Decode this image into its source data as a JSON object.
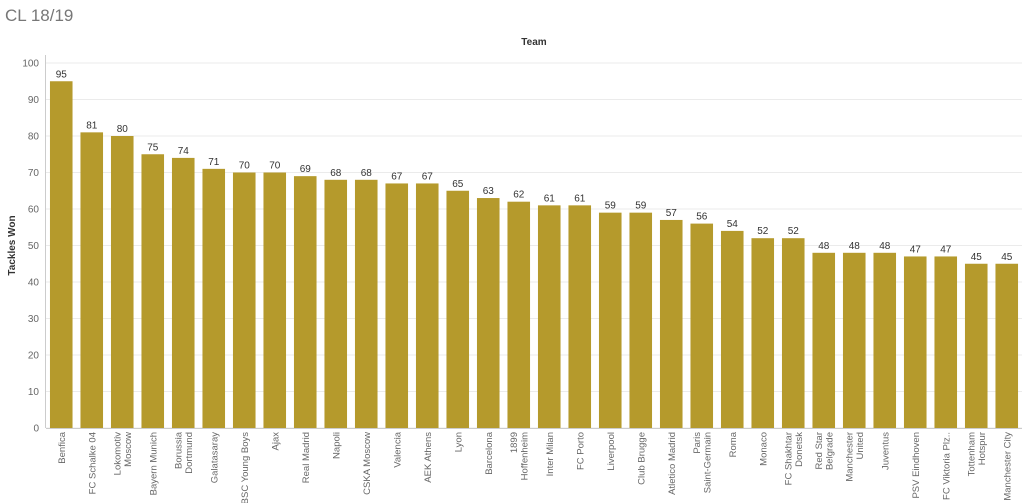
{
  "page": {
    "title": "CL 18/19"
  },
  "colors": {
    "bar": "#b59a2c",
    "grid": "#ebebeb",
    "axis": "#cccccc"
  },
  "chart_data": {
    "type": "bar",
    "title": "",
    "xlabel": "Team",
    "ylabel": "Tackles Won",
    "xlabel_position": "top",
    "ylim": [
      0,
      100
    ],
    "yticks": [
      0,
      10,
      20,
      30,
      40,
      50,
      60,
      70,
      80,
      90,
      100
    ],
    "grid": true,
    "categories": [
      "Benfica",
      "FC Schalke 04",
      "Lokomotiv Moscow",
      "Bayern Munich",
      "Borussia Dortmund",
      "Galatasaray",
      "BSC Young Boys",
      "Ajax",
      "Real Madrid",
      "Napoli",
      "CSKA Moscow",
      "Valencia",
      "AEK Athens",
      "Lyon",
      "Barcelona",
      "1899 Hoffenheim",
      "Inter Milan",
      "FC Porto",
      "Liverpool",
      "Club Brugge",
      "Atletico Madrid",
      "Paris Saint-Germain",
      "Roma",
      "Monaco",
      "FC Shakhtar Donetsk",
      "Red Star Belgrade",
      "Manchester United",
      "Juventus",
      "PSV Eindhoven",
      "FC Viktoria Plz..",
      "Tottenham Hotspur",
      "Manchester City"
    ],
    "category_label_lines": [
      [
        "Benfica"
      ],
      [
        "FC Schalke 04"
      ],
      [
        "Lokomotiv",
        "Moscow"
      ],
      [
        "Bayern Munich"
      ],
      [
        "Borussia",
        "Dortmund"
      ],
      [
        "Galatasaray"
      ],
      [
        "BSC Young Boys"
      ],
      [
        "Ajax"
      ],
      [
        "Real Madrid"
      ],
      [
        "Napoli"
      ],
      [
        "CSKA Moscow"
      ],
      [
        "Valencia"
      ],
      [
        "AEK Athens"
      ],
      [
        "Lyon"
      ],
      [
        "Barcelona"
      ],
      [
        "1899",
        "Hoffenheim"
      ],
      [
        "Inter Milan"
      ],
      [
        "FC Porto"
      ],
      [
        "Liverpool"
      ],
      [
        "Club Brugge"
      ],
      [
        "Atletico Madrid"
      ],
      [
        "Paris",
        "Saint-Germain"
      ],
      [
        "Roma"
      ],
      [
        "Monaco"
      ],
      [
        "FC Shakhtar",
        "Donetsk"
      ],
      [
        "Red Star",
        "Belgrade"
      ],
      [
        "Manchester",
        "United"
      ],
      [
        "Juventus"
      ],
      [
        "PSV Eindhoven"
      ],
      [
        "FC Viktoria Plz.."
      ],
      [
        "Tottenham",
        "Hotspur"
      ],
      [
        "Manchester City"
      ]
    ],
    "values": [
      95,
      81,
      80,
      75,
      74,
      71,
      70,
      70,
      69,
      68,
      68,
      67,
      67,
      65,
      63,
      62,
      61,
      61,
      59,
      59,
      57,
      56,
      54,
      52,
      52,
      48,
      48,
      48,
      47,
      47,
      45,
      45
    ]
  }
}
